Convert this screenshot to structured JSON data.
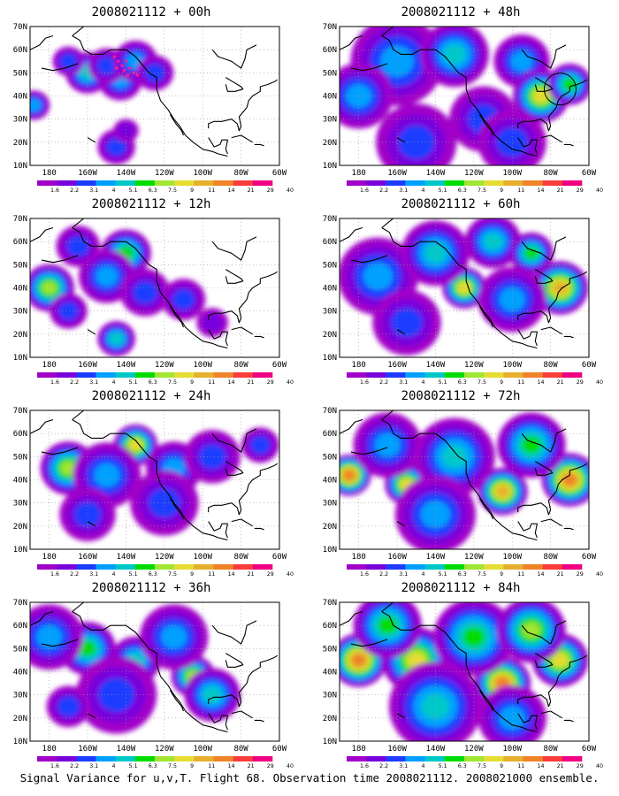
{
  "footer": "Signal Variance for u,v,T. Flight 68. Observation time 2008021112. 2008021000 ensemble.",
  "map_axes": {
    "lon_labels": [
      "180",
      "160W",
      "140W",
      "120W",
      "100W",
      "80W",
      "60W"
    ],
    "lat_labels": [
      "10N",
      "20N",
      "30N",
      "40N",
      "50N",
      "60N",
      "70N"
    ]
  },
  "colorbar": {
    "labels": [
      "1.6",
      "2.2",
      "3.1",
      "4",
      "5.1",
      "6.3",
      "7.5",
      "9",
      "11",
      "14",
      "21",
      "29",
      "40"
    ],
    "colors": [
      "#a000c8",
      "#7800dc",
      "#1e3cff",
      "#00a0ff",
      "#00c8c8",
      "#00dc00",
      "#a0e632",
      "#e6dc32",
      "#e6af2d",
      "#f08228",
      "#fa3c3c",
      "#f00082"
    ]
  },
  "panels": [
    {
      "id": "p00",
      "base": "2008021112",
      "lead": "+ 00h",
      "obs_marker": "dots",
      "blobs": [
        {
          "lon": -143,
          "lat": 47,
          "r": 6,
          "v": 3
        },
        {
          "lon": -160,
          "lat": 50,
          "r": 6,
          "v": 4
        },
        {
          "lon": -170,
          "lat": 55,
          "r": 4,
          "v": 2
        },
        {
          "lon": -150,
          "lat": 53,
          "r": 5,
          "v": 2
        },
        {
          "lon": -135,
          "lat": 55,
          "r": 6,
          "v": 3
        },
        {
          "lon": -125,
          "lat": 50,
          "r": 5,
          "v": 2
        },
        {
          "lon": -188,
          "lat": 36,
          "r": 4,
          "v": 3
        },
        {
          "lon": -145,
          "lat": 18,
          "r": 5,
          "v": 2
        },
        {
          "lon": -140,
          "lat": 25,
          "r": 3,
          "v": 1
        }
      ]
    },
    {
      "id": "p48",
      "base": "2008021112",
      "lead": "+ 48h",
      "obs_marker": "circle",
      "blobs": [
        {
          "lon": -160,
          "lat": 55,
          "r": 14,
          "v": 3
        },
        {
          "lon": -130,
          "lat": 58,
          "r": 10,
          "v": 4
        },
        {
          "lon": -180,
          "lat": 40,
          "r": 10,
          "v": 3
        },
        {
          "lon": -115,
          "lat": 30,
          "r": 10,
          "v": 2
        },
        {
          "lon": -95,
          "lat": 55,
          "r": 8,
          "v": 3
        },
        {
          "lon": -85,
          "lat": 40,
          "r": 8,
          "v": 7
        },
        {
          "lon": -70,
          "lat": 45,
          "r": 6,
          "v": 5
        },
        {
          "lon": -150,
          "lat": 20,
          "r": 12,
          "v": 2
        },
        {
          "lon": -100,
          "lat": 20,
          "r": 10,
          "v": 2
        }
      ]
    },
    {
      "id": "p12",
      "base": "2008021112",
      "lead": "+ 12h",
      "blobs": [
        {
          "lon": -180,
          "lat": 40,
          "r": 7,
          "v": 6
        },
        {
          "lon": -140,
          "lat": 55,
          "r": 7,
          "v": 5
        },
        {
          "lon": -150,
          "lat": 45,
          "r": 8,
          "v": 3
        },
        {
          "lon": -165,
          "lat": 58,
          "r": 6,
          "v": 2
        },
        {
          "lon": -130,
          "lat": 38,
          "r": 7,
          "v": 2
        },
        {
          "lon": -145,
          "lat": 18,
          "r": 5,
          "v": 4
        },
        {
          "lon": -110,
          "lat": 35,
          "r": 6,
          "v": 2
        },
        {
          "lon": -170,
          "lat": 30,
          "r": 5,
          "v": 2
        },
        {
          "lon": -95,
          "lat": 25,
          "r": 4,
          "v": 1
        }
      ]
    },
    {
      "id": "p60",
      "base": "2008021112",
      "lead": "+ 60h",
      "blobs": [
        {
          "lon": -170,
          "lat": 45,
          "r": 12,
          "v": 3
        },
        {
          "lon": -125,
          "lat": 40,
          "r": 6,
          "v": 7
        },
        {
          "lon": -75,
          "lat": 40,
          "r": 8,
          "v": 8
        },
        {
          "lon": -140,
          "lat": 55,
          "r": 10,
          "v": 4
        },
        {
          "lon": -100,
          "lat": 35,
          "r": 10,
          "v": 3
        },
        {
          "lon": -155,
          "lat": 25,
          "r": 10,
          "v": 2
        },
        {
          "lon": -110,
          "lat": 60,
          "r": 8,
          "v": 4
        },
        {
          "lon": -90,
          "lat": 55,
          "r": 6,
          "v": 5
        }
      ]
    },
    {
      "id": "p24",
      "base": "2008021112",
      "lead": "+ 24h",
      "blobs": [
        {
          "lon": -170,
          "lat": 45,
          "r": 8,
          "v": 6
        },
        {
          "lon": -135,
          "lat": 55,
          "r": 6,
          "v": 7
        },
        {
          "lon": -150,
          "lat": 42,
          "r": 10,
          "v": 3
        },
        {
          "lon": -115,
          "lat": 45,
          "r": 8,
          "v": 3
        },
        {
          "lon": -120,
          "lat": 30,
          "r": 10,
          "v": 2
        },
        {
          "lon": -160,
          "lat": 25,
          "r": 8,
          "v": 2
        },
        {
          "lon": -95,
          "lat": 50,
          "r": 8,
          "v": 2
        },
        {
          "lon": -70,
          "lat": 55,
          "r": 5,
          "v": 2
        }
      ]
    },
    {
      "id": "p72",
      "base": "2008021112",
      "lead": "+ 72h",
      "blobs": [
        {
          "lon": -185,
          "lat": 42,
          "r": 6,
          "v": 9
        },
        {
          "lon": -155,
          "lat": 38,
          "r": 6,
          "v": 7
        },
        {
          "lon": -105,
          "lat": 35,
          "r": 7,
          "v": 8
        },
        {
          "lon": -70,
          "lat": 40,
          "r": 8,
          "v": 9
        },
        {
          "lon": -130,
          "lat": 50,
          "r": 12,
          "v": 4
        },
        {
          "lon": -165,
          "lat": 55,
          "r": 10,
          "v": 3
        },
        {
          "lon": -90,
          "lat": 55,
          "r": 10,
          "v": 5
        },
        {
          "lon": -140,
          "lat": 25,
          "r": 12,
          "v": 3
        }
      ]
    },
    {
      "id": "p36",
      "base": "2008021112",
      "lead": "+ 36h",
      "blobs": [
        {
          "lon": -160,
          "lat": 50,
          "r": 8,
          "v": 5
        },
        {
          "lon": -135,
          "lat": 45,
          "r": 7,
          "v": 4
        },
        {
          "lon": -105,
          "lat": 38,
          "r": 6,
          "v": 6
        },
        {
          "lon": -95,
          "lat": 30,
          "r": 8,
          "v": 4
        },
        {
          "lon": -180,
          "lat": 55,
          "r": 10,
          "v": 3
        },
        {
          "lon": -145,
          "lat": 30,
          "r": 12,
          "v": 2
        },
        {
          "lon": -115,
          "lat": 55,
          "r": 10,
          "v": 3
        },
        {
          "lon": -170,
          "lat": 25,
          "r": 6,
          "v": 2
        }
      ]
    },
    {
      "id": "p84",
      "base": "2008021112",
      "lead": "+ 84h",
      "blobs": [
        {
          "lon": -180,
          "lat": 45,
          "r": 8,
          "v": 9
        },
        {
          "lon": -150,
          "lat": 45,
          "r": 10,
          "v": 7
        },
        {
          "lon": -105,
          "lat": 35,
          "r": 8,
          "v": 9
        },
        {
          "lon": -75,
          "lat": 45,
          "r": 8,
          "v": 7
        },
        {
          "lon": -120,
          "lat": 55,
          "r": 12,
          "v": 5
        },
        {
          "lon": -165,
          "lat": 60,
          "r": 10,
          "v": 5
        },
        {
          "lon": -90,
          "lat": 58,
          "r": 10,
          "v": 6
        },
        {
          "lon": -140,
          "lat": 25,
          "r": 14,
          "v": 4
        },
        {
          "lon": -100,
          "lat": 20,
          "r": 10,
          "v": 3
        }
      ]
    }
  ]
}
